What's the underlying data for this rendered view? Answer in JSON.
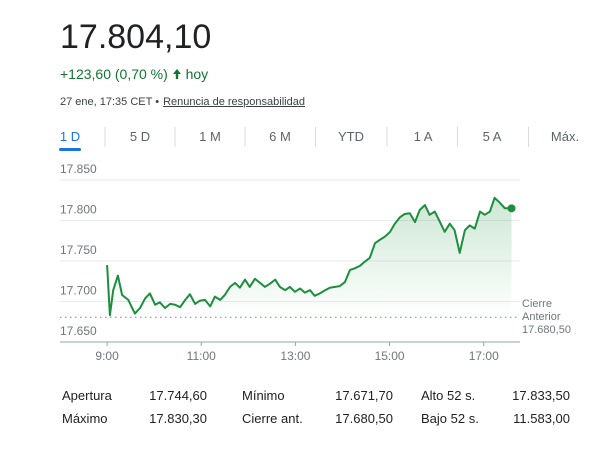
{
  "header": {
    "price": "17.804,10",
    "change": "+123,60 (0,70 %)",
    "period": "hoy",
    "timestamp": "27 ene, 17:35 CET •",
    "disclaimer": "Renuncia de responsabilidad"
  },
  "tabs": [
    "1 D",
    "5 D",
    "1 M",
    "6 M",
    "YTD",
    "1 A",
    "5 A",
    "Máx."
  ],
  "active_tab": 0,
  "chart_data": {
    "type": "line",
    "color": "#1e8e3e",
    "x": [
      9.0,
      9.06,
      9.13,
      9.23,
      9.32,
      9.45,
      9.59,
      9.7,
      9.81,
      9.91,
      10.02,
      10.12,
      10.23,
      10.34,
      10.44,
      10.55,
      10.66,
      10.76,
      10.87,
      10.97,
      11.08,
      11.19,
      11.29,
      11.4,
      11.5,
      11.61,
      11.72,
      11.82,
      11.93,
      12.03,
      12.14,
      12.25,
      12.35,
      12.46,
      12.57,
      12.67,
      12.78,
      12.88,
      12.99,
      13.1,
      13.2,
      13.31,
      13.41,
      13.52,
      13.63,
      13.73,
      13.84,
      13.94,
      14.05,
      14.16,
      14.26,
      14.37,
      14.47,
      14.58,
      14.69,
      14.79,
      14.9,
      15.01,
      15.11,
      15.22,
      15.32,
      15.43,
      15.54,
      15.64,
      15.75,
      15.85,
      15.96,
      16.07,
      16.17,
      16.28,
      16.38,
      16.49,
      16.6,
      16.7,
      16.81,
      16.92,
      17.02,
      17.13,
      17.23,
      17.34,
      17.45,
      17.59
    ],
    "values": [
      17745,
      17683,
      17714,
      17732,
      17708,
      17702,
      17685,
      17692,
      17704,
      17710,
      17696,
      17699,
      17692,
      17697,
      17696,
      17693,
      17702,
      17709,
      17697,
      17701,
      17702,
      17694,
      17706,
      17702,
      17708,
      17718,
      17723,
      17717,
      17727,
      17718,
      17728,
      17723,
      17718,
      17722,
      17727,
      17718,
      17714,
      17718,
      17712,
      17716,
      17711,
      17714,
      17707,
      17710,
      17714,
      17717,
      17718,
      17719,
      17724,
      17739,
      17741,
      17744,
      17749,
      17754,
      17772,
      17776,
      17780,
      17786,
      17796,
      17804,
      17808,
      17809,
      17798,
      17813,
      17819,
      17807,
      17811,
      17798,
      17786,
      17796,
      17788,
      17760,
      17788,
      17794,
      17790,
      17811,
      17807,
      17811,
      17828,
      17822,
      17815,
      17815
    ],
    "xlim": [
      8,
      17.77
    ],
    "ylim": [
      17650,
      17850
    ],
    "xticks": [
      {
        "value": 9,
        "label": "9:00"
      },
      {
        "value": 11,
        "label": "11:00"
      },
      {
        "value": 13,
        "label": "13:00"
      },
      {
        "value": 15,
        "label": "15:00"
      },
      {
        "value": 17,
        "label": "17:00"
      }
    ],
    "yticks": [
      {
        "value": 17650,
        "label": "17.650"
      },
      {
        "value": 17700,
        "label": "17.700"
      },
      {
        "value": 17750,
        "label": "17.750"
      },
      {
        "value": 17800,
        "label": "17.800"
      },
      {
        "value": 17850,
        "label": "17.850"
      }
    ],
    "grid": true,
    "reference": {
      "name": "Cierre Anterior",
      "value": 17680.5,
      "label": "17.680,50"
    }
  },
  "stats": [
    [
      "Apertura",
      "17.744,60",
      "Mínimo",
      "17.671,70",
      "Alto 52 s.",
      "17.833,50"
    ],
    [
      "Máximo",
      "17.830,30",
      "Cierre ant.",
      "17.680,50",
      "Bajo 52 s.",
      "11.583,00"
    ]
  ]
}
